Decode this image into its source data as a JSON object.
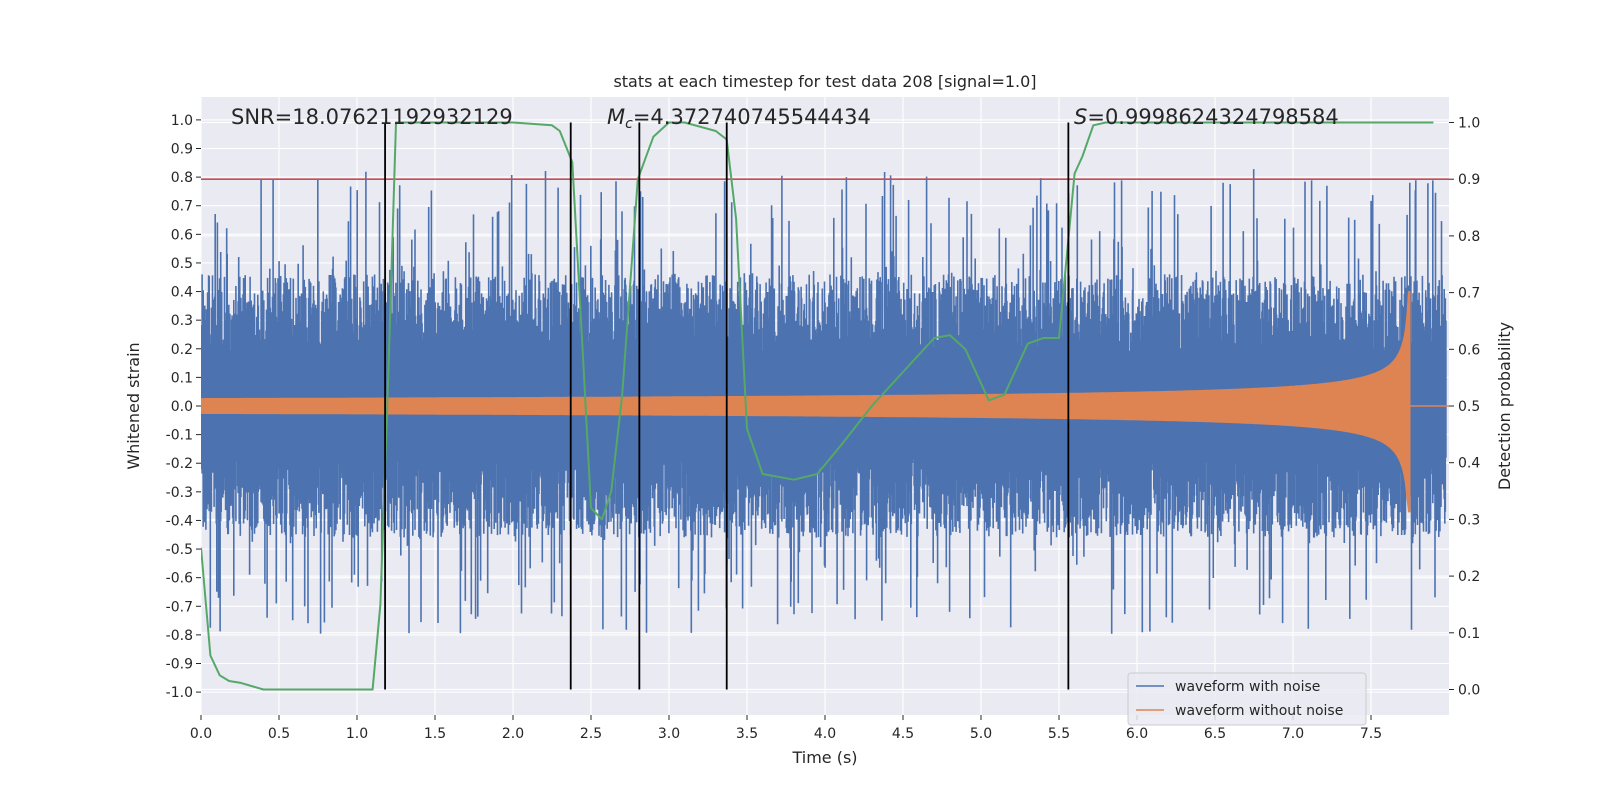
{
  "chart_data": {
    "type": "line",
    "title": "stats at each timestep for test data 208 [signal=1.0]",
    "xlabel": "Time (s)",
    "ylabel": "Whitened strain",
    "y2label": "Detection probability",
    "xlim": [
      0.0,
      8.0
    ],
    "ylim": [
      -1.08,
      1.08
    ],
    "y2lim": [
      -0.045,
      1.045
    ],
    "xticks": [
      0.0,
      0.5,
      1.0,
      1.5,
      2.0,
      2.5,
      3.0,
      3.5,
      4.0,
      4.5,
      5.0,
      5.5,
      6.0,
      6.5,
      7.0,
      7.5
    ],
    "yticks": [
      -1.0,
      -0.9,
      -0.8,
      -0.7,
      -0.6,
      -0.5,
      -0.4,
      -0.3,
      -0.2,
      -0.1,
      0.0,
      0.1,
      0.2,
      0.3,
      0.4,
      0.5,
      0.6,
      0.7,
      0.8,
      0.9,
      1.0
    ],
    "y2ticks": [
      0.0,
      0.1,
      0.2,
      0.3,
      0.4,
      0.5,
      0.6,
      0.7,
      0.8,
      0.9,
      1.0
    ],
    "grid": true,
    "threshold": {
      "axis": "y2",
      "value": 0.9,
      "color": "#c44e52"
    },
    "vlines": [
      1.18,
      2.37,
      2.81,
      3.37,
      5.56
    ],
    "annotations": {
      "snr": "SNR=18.07621192932129",
      "mc_symbol": "M",
      "mc_sub": "c",
      "mc_value": "=4.372740745544434",
      "s_symbol": "S",
      "s_value": "=0.9998624324798584"
    },
    "series": [
      {
        "name": "waveform with noise",
        "color": "#4c72b0",
        "axis": "y",
        "style": "noise",
        "amplitude": 0.45
      },
      {
        "name": "waveform without noise",
        "color": "#dd8452",
        "axis": "y",
        "style": "chirp",
        "merger_time": 7.75,
        "peak_upper": 0.4,
        "peak_lower": -0.37
      },
      {
        "name": "detection probability",
        "color": "#55a868",
        "axis": "y2",
        "x": [
          0.0,
          0.06,
          0.12,
          0.18,
          0.25,
          0.4,
          0.6,
          0.8,
          1.0,
          1.1,
          1.15,
          1.2,
          1.25,
          1.3,
          1.5,
          2.0,
          2.25,
          2.3,
          2.38,
          2.45,
          2.5,
          2.57,
          2.63,
          2.7,
          2.8,
          2.9,
          3.0,
          3.1,
          3.3,
          3.37,
          3.43,
          3.5,
          3.6,
          3.8,
          3.95,
          4.1,
          4.3,
          4.5,
          4.7,
          4.8,
          4.9,
          5.05,
          5.15,
          5.3,
          5.4,
          5.5,
          5.6,
          5.65,
          5.72,
          5.8,
          6.0,
          7.9
        ],
        "values": [
          0.25,
          0.06,
          0.025,
          0.015,
          0.012,
          0.0,
          0.0,
          0.0,
          0.0,
          0.0,
          0.15,
          0.55,
          1.0,
          1.0,
          1.0,
          1.0,
          0.995,
          0.985,
          0.93,
          0.58,
          0.32,
          0.3,
          0.35,
          0.52,
          0.9,
          0.975,
          1.0,
          1.0,
          0.985,
          0.97,
          0.83,
          0.46,
          0.38,
          0.37,
          0.38,
          0.43,
          0.5,
          0.56,
          0.62,
          0.625,
          0.6,
          0.51,
          0.52,
          0.61,
          0.62,
          0.62,
          0.91,
          0.94,
          0.995,
          1.0,
          1.0,
          1.0
        ]
      }
    ]
  }
}
